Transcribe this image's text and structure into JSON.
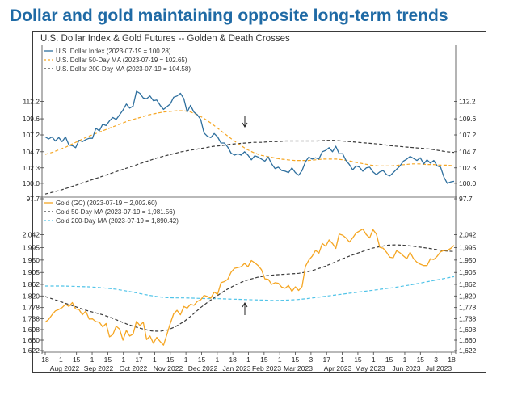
{
  "headline": "Dollar and gold maintaining opposite long-term trends",
  "colors": {
    "headline": "#1f6aa5",
    "dollar": "#2e6f9e",
    "gold": "#f5a623",
    "ma50_dollar": "#f5a623",
    "ma200_dollar": "#3a3a3a",
    "ma50_gold": "#3a3a3a",
    "ma200_gold": "#4fc3e8"
  },
  "chart_data": [
    {
      "type": "line",
      "title": "U.S. Dollar Index & Gold Futures -- Golden & Death Crosses",
      "yticks": [
        "112.2",
        "109.6",
        "107.2",
        "104.7",
        "102.3",
        "100.0",
        "97.7"
      ],
      "ylim": [
        97.7,
        115.5
      ],
      "legend_position": "top-left",
      "series": [
        {
          "name": "U.S. Dollar Index (2023-07-19 = 100.28)",
          "style": "solid",
          "color": "#2e6f9e",
          "values": [
            106.9,
            106.6,
            106.9,
            106.3,
            106.8,
            106.2,
            106.9,
            105.7,
            105.6,
            105.3,
            106.4,
            106.2,
            106.5,
            106.7,
            106.7,
            108.2,
            107.8,
            108.8,
            108.6,
            109.3,
            109.8,
            109.5,
            110.2,
            110.9,
            111.8,
            111.2,
            111.5,
            113.7,
            113.4,
            112.7,
            112.6,
            113.0,
            112.3,
            112.4,
            111.6,
            111.0,
            111.4,
            111.8,
            112.8,
            113.0,
            113.4,
            112.6,
            110.6,
            111.6,
            110.6,
            110.2,
            109.5,
            107.5,
            107.0,
            106.8,
            107.4,
            106.9,
            106.0,
            106.0,
            105.4,
            104.5,
            104.2,
            104.4,
            104.2,
            104.7,
            104.2,
            103.5,
            104.1,
            103.9,
            103.6,
            103.3,
            103.9,
            102.9,
            102.2,
            102.4,
            101.9,
            101.8,
            101.6,
            102.3,
            101.6,
            101.2,
            101.9,
            103.2,
            103.9,
            103.6,
            103.8,
            103.6,
            104.7,
            104.9,
            105.3,
            104.7,
            105.5,
            104.4,
            104.4,
            103.4,
            102.8,
            102.0,
            102.6,
            102.4,
            101.8,
            102.3,
            102.4,
            101.7,
            101.3,
            101.7,
            101.9,
            101.3,
            101.1,
            101.6,
            102.1,
            102.6,
            103.3,
            103.6,
            104.0,
            103.7,
            103.4,
            103.8,
            102.9,
            103.5,
            103.0,
            103.4,
            102.6,
            102.4,
            100.9,
            100.0,
            100.2,
            100.3
          ]
        },
        {
          "name": "U.S. Dollar 50-Day MA (2023-07-19 = 102.65)",
          "style": "dashed",
          "color": "#f5a623",
          "values": [
            104.3,
            104.6,
            105.0,
            105.4,
            105.9,
            106.4,
            106.9,
            107.3,
            107.7,
            108.1,
            108.5,
            108.9,
            109.3,
            109.6,
            109.9,
            110.2,
            110.4,
            110.6,
            110.7,
            110.8,
            110.8,
            110.6,
            110.2,
            109.6,
            108.9,
            108.1,
            107.3,
            106.5,
            105.8,
            105.1,
            104.6,
            104.2,
            104.0,
            103.8,
            103.6,
            103.5,
            103.4,
            103.4,
            103.4,
            103.5,
            103.6,
            103.6,
            103.6,
            103.5,
            103.3,
            103.1,
            102.9,
            102.7,
            102.6,
            102.6,
            102.6,
            102.7,
            102.8,
            102.9,
            102.9,
            102.8,
            102.8,
            102.7,
            102.7,
            102.6
          ]
        },
        {
          "name": "U.S. Dollar 200-Day MA (2023-07-19 = 104.58)",
          "style": "dashed",
          "color": "#3a3a3a",
          "values": [
            98.4,
            98.7,
            99.0,
            99.4,
            99.8,
            100.2,
            100.6,
            101.0,
            101.4,
            101.8,
            102.2,
            102.6,
            103.0,
            103.4,
            103.8,
            104.1,
            104.4,
            104.7,
            104.9,
            105.1,
            105.3,
            105.5,
            105.6,
            105.8,
            105.9,
            106.0,
            106.1,
            106.1,
            106.2,
            106.2,
            106.3,
            106.3,
            106.3,
            106.3,
            106.3,
            106.4,
            106.4,
            106.3,
            106.2,
            106.1,
            106.0,
            105.9,
            105.8,
            105.6,
            105.5,
            105.4,
            105.3,
            105.2,
            105.1,
            104.9,
            104.7,
            104.6
          ]
        }
      ],
      "annotations": [
        "death-cross-arrow-down"
      ]
    },
    {
      "type": "line",
      "yticks": [
        "2,042",
        "1,995",
        "1,950",
        "1,905",
        "1,862",
        "1,820",
        "1,778",
        "1,738",
        "1,698",
        "1,660",
        "1,622"
      ],
      "ylim": [
        1622,
        2090
      ],
      "xticks": [
        "18",
        "1",
        "15",
        "1",
        "15",
        "1",
        "17",
        "1",
        "15",
        "1",
        "15",
        "1",
        "18",
        "1",
        "15",
        "1",
        "15",
        "3",
        "17",
        "1",
        "15",
        "1",
        "15",
        "1",
        "15",
        "3",
        "18"
      ],
      "xmonths": [
        "Aug 2022",
        "Sep 2022",
        "Oct 2022",
        "Nov 2022",
        "Dec 2022",
        "Jan 2023",
        "Feb 2023",
        "Mar 2023",
        "Apr 2023",
        "May 2023",
        "Jun 2023",
        "Jul 2023"
      ],
      "legend_position": "top-left",
      "series": [
        {
          "name": "Gold (GC) (2023-07-19 = 2,002.60)",
          "style": "solid",
          "color": "#f5a623",
          "values": [
            1725,
            1735,
            1752,
            1766,
            1771,
            1778,
            1790,
            1782,
            1796,
            1773,
            1771,
            1752,
            1765,
            1736,
            1737,
            1727,
            1725,
            1708,
            1720,
            1672,
            1680,
            1710,
            1700,
            1660,
            1695,
            1675,
            1682,
            1728,
            1713,
            1725,
            1662,
            1675,
            1649,
            1670,
            1655,
            1642,
            1680,
            1720,
            1755,
            1768,
            1752,
            1782,
            1776,
            1790,
            1786,
            1800,
            1806,
            1822,
            1818,
            1812,
            1834,
            1826,
            1868,
            1872,
            1880,
            1906,
            1920,
            1923,
            1926,
            1938,
            1926,
            1948,
            1940,
            1930,
            1915,
            1882,
            1880,
            1862,
            1868,
            1866,
            1852,
            1848,
            1858,
            1836,
            1853,
            1840,
            1854,
            1927,
            1950,
            1964,
            1985,
            1975,
            2010,
            2000,
            2023,
            2010,
            1992,
            2044,
            2040,
            2030,
            2015,
            2030,
            2048,
            2055,
            2062,
            2042,
            2030,
            2060,
            2044,
            1996,
            1993,
            1978,
            1960,
            1958,
            1984,
            1976,
            1965,
            1955,
            1978,
            1955,
            1942,
            1935,
            1930,
            1930,
            1955,
            1952,
            1964,
            1980,
            1985,
            1985,
            1992,
            2003
          ]
        },
        {
          "name": "Gold 50-Day MA (2023-07-19 = 1,981.56)",
          "style": "dashed",
          "color": "#3a3a3a",
          "values": [
            1818,
            1808,
            1798,
            1788,
            1778,
            1768,
            1760,
            1752,
            1742,
            1730,
            1718,
            1708,
            1700,
            1693,
            1692,
            1697,
            1710,
            1728,
            1752,
            1778,
            1800,
            1820,
            1840,
            1856,
            1870,
            1880,
            1888,
            1893,
            1896,
            1898,
            1900,
            1902,
            1907,
            1915,
            1925,
            1937,
            1950,
            1962,
            1973,
            1983,
            1993,
            1999,
            2004,
            2005,
            2003,
            2000,
            1996,
            1992,
            1987,
            1983,
            1981
          ]
        },
        {
          "name": "Gold 200-Day MA (2023-07-19 = 1,890.42)",
          "style": "dashed",
          "color": "#4fc3e8",
          "values": [
            1856,
            1856,
            1856,
            1855,
            1854,
            1853,
            1851,
            1848,
            1845,
            1840,
            1834,
            1828,
            1822,
            1817,
            1814,
            1813,
            1813,
            1812,
            1811,
            1810,
            1810,
            1809,
            1808,
            1807,
            1806,
            1805,
            1804,
            1804,
            1805,
            1807,
            1810,
            1814,
            1818,
            1822,
            1826,
            1830,
            1834,
            1838,
            1842,
            1846,
            1850,
            1855,
            1860,
            1866,
            1872,
            1878,
            1884,
            1890
          ]
        }
      ],
      "annotations": [
        "golden-cross-arrow-up"
      ]
    }
  ]
}
